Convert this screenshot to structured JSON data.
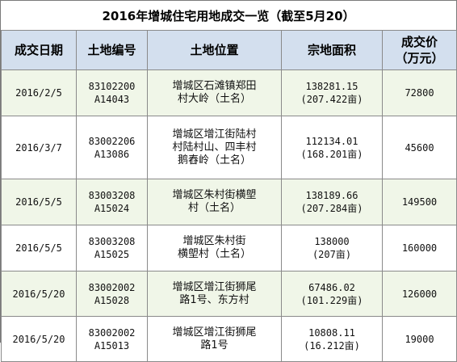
{
  "title": "2016年增城住宅用地成交一览（截至5月20）",
  "headers": {
    "date": "成交日期",
    "code": "土地编号",
    "location": "土地位置",
    "area": "宗地面积",
    "price_line1": "成交价",
    "price_line2": "（万元）"
  },
  "rows": [
    {
      "date": "2016/2/5",
      "code": [
        "83102200",
        "A14043"
      ],
      "location": [
        "增城区石滩镇郑田",
        "村大岭（土名）"
      ],
      "area": [
        "138281.15",
        "(207.422亩)"
      ],
      "price": "72800"
    },
    {
      "date": "2016/3/7",
      "code": [
        "83002206",
        "A13086"
      ],
      "location": [
        "增城区增江街陆村",
        "村陆村山、四丰村",
        "鹅舂岭（土名）"
      ],
      "area": [
        "112134.01",
        "(168.201亩)"
      ],
      "price": "45600"
    },
    {
      "date": "2016/5/5",
      "code": [
        "83003208",
        "A15024"
      ],
      "location": [
        "增城区朱村街横塱",
        "村（土名）"
      ],
      "area": [
        "138189.66",
        "(207.284亩)"
      ],
      "price": "149500"
    },
    {
      "date": "2016/5/5",
      "code": [
        "83003208",
        "A15025"
      ],
      "location": [
        "增城区朱村街",
        "横塱村（土名）"
      ],
      "area": [
        "138000",
        "(207亩)"
      ],
      "price": "160000"
    },
    {
      "date": "2016/5/20",
      "code": [
        "83002002",
        "A15028"
      ],
      "location": [
        "增城区增江街狮尾",
        "路1号、东方村"
      ],
      "area": [
        "67486.02",
        "(101.229亩)"
      ],
      "price": "126000"
    },
    {
      "date": "2016/5/20",
      "code": [
        "83002002",
        "A15013"
      ],
      "location": [
        "增城区增江街狮尾",
        "路1号"
      ],
      "area": [
        "10808.11",
        "(16.212亩)"
      ],
      "price": "19000"
    }
  ]
}
